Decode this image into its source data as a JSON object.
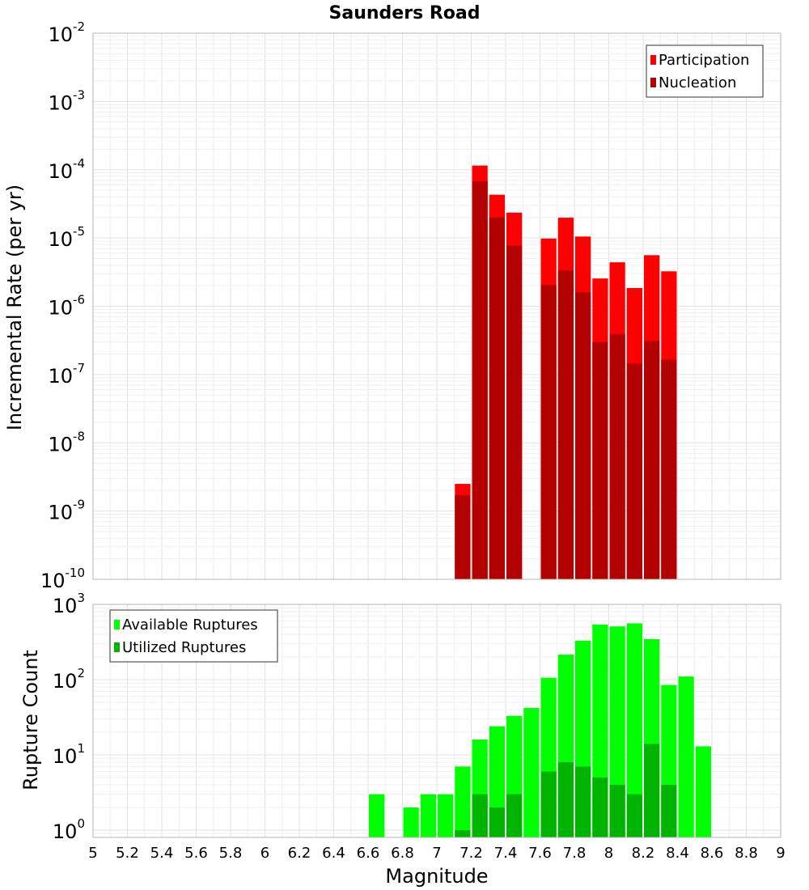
{
  "chart_data": [
    {
      "type": "bar",
      "title": "Saunders Road",
      "xlabel": "",
      "ylabel": "Incremental Rate (per yr)",
      "yscale": "log",
      "ylim": [
        1e-10,
        0.01
      ],
      "xlim": [
        5,
        9
      ],
      "y_ticks": [
        {
          "base": "10",
          "exp": "-10"
        },
        {
          "base": "10",
          "exp": "-9"
        },
        {
          "base": "10",
          "exp": "-8"
        },
        {
          "base": "10",
          "exp": "-7"
        },
        {
          "base": "10",
          "exp": "-6"
        },
        {
          "base": "10",
          "exp": "-5"
        },
        {
          "base": "10",
          "exp": "-4"
        },
        {
          "base": "10",
          "exp": "-3"
        },
        {
          "base": "10",
          "exp": "-2"
        }
      ],
      "legend_position": "top-right",
      "bar_width": 0.1,
      "series": [
        {
          "name": "Participation",
          "color": "#ff0000",
          "points": [
            {
              "x": 7.1,
              "y": 2.5e-09
            },
            {
              "x": 7.2,
              "y": 0.000115
            },
            {
              "x": 7.3,
              "y": 4.3e-05
            },
            {
              "x": 7.4,
              "y": 2.35e-05
            },
            {
              "x": 7.6,
              "y": 9.8e-06
            },
            {
              "x": 7.7,
              "y": 1.98e-05
            },
            {
              "x": 7.8,
              "y": 1.05e-05
            },
            {
              "x": 7.9,
              "y": 2.55e-06
            },
            {
              "x": 8.0,
              "y": 4.4e-06
            },
            {
              "x": 8.1,
              "y": 1.85e-06
            },
            {
              "x": 8.2,
              "y": 5.6e-06
            },
            {
              "x": 8.3,
              "y": 3.25e-06
            }
          ]
        },
        {
          "name": "Nucleation",
          "color": "#b30000",
          "points": [
            {
              "x": 7.1,
              "y": 1.7e-09
            },
            {
              "x": 7.2,
              "y": 6.8e-05
            },
            {
              "x": 7.3,
              "y": 2e-05
            },
            {
              "x": 7.4,
              "y": 7.7e-06
            },
            {
              "x": 7.6,
              "y": 2.05e-06
            },
            {
              "x": 7.7,
              "y": 3.35e-06
            },
            {
              "x": 7.8,
              "y": 1.6e-06
            },
            {
              "x": 7.9,
              "y": 3e-07
            },
            {
              "x": 8.0,
              "y": 3.9e-07
            },
            {
              "x": 8.1,
              "y": 1.45e-07
            },
            {
              "x": 8.2,
              "y": 3.1e-07
            },
            {
              "x": 8.3,
              "y": 1.65e-07
            }
          ]
        }
      ]
    },
    {
      "type": "bar",
      "title": "",
      "xlabel": "Magnitude",
      "ylabel": "Rupture Count",
      "yscale": "log",
      "ylim": [
        0.8,
        1000
      ],
      "xlim": [
        5,
        9
      ],
      "x_ticks": [
        "5",
        "5.2",
        "5.4",
        "5.6",
        "5.8",
        "6",
        "6.2",
        "6.4",
        "6.6",
        "6.8",
        "7",
        "7.2",
        "7.4",
        "7.6",
        "7.8",
        "8",
        "8.2",
        "8.4",
        "8.6",
        "8.8",
        "9"
      ],
      "y_ticks": [
        {
          "base": "10",
          "exp": "0"
        },
        {
          "base": "10",
          "exp": "1"
        },
        {
          "base": "10",
          "exp": "2"
        },
        {
          "base": "10",
          "exp": "3"
        }
      ],
      "legend_position": "top-left",
      "bar_width": 0.1,
      "series": [
        {
          "name": "Available Ruptures",
          "color": "#00ff00",
          "points": [
            {
              "x": 6.6,
              "y": 3
            },
            {
              "x": 6.8,
              "y": 2
            },
            {
              "x": 6.9,
              "y": 3
            },
            {
              "x": 7.0,
              "y": 3
            },
            {
              "x": 7.1,
              "y": 7
            },
            {
              "x": 7.2,
              "y": 16
            },
            {
              "x": 7.3,
              "y": 24
            },
            {
              "x": 7.4,
              "y": 33
            },
            {
              "x": 7.5,
              "y": 42
            },
            {
              "x": 7.6,
              "y": 106
            },
            {
              "x": 7.7,
              "y": 215
            },
            {
              "x": 7.8,
              "y": 330
            },
            {
              "x": 7.9,
              "y": 540
            },
            {
              "x": 8.0,
              "y": 510
            },
            {
              "x": 8.1,
              "y": 560
            },
            {
              "x": 8.2,
              "y": 345
            },
            {
              "x": 8.3,
              "y": 85
            },
            {
              "x": 8.4,
              "y": 110
            },
            {
              "x": 8.5,
              "y": 13
            }
          ]
        },
        {
          "name": "Utilized Ruptures",
          "color": "#00b300",
          "points": [
            {
              "x": 7.1,
              "y": 1
            },
            {
              "x": 7.2,
              "y": 3
            },
            {
              "x": 7.3,
              "y": 2
            },
            {
              "x": 7.4,
              "y": 3
            },
            {
              "x": 7.6,
              "y": 6
            },
            {
              "x": 7.7,
              "y": 8
            },
            {
              "x": 7.8,
              "y": 7
            },
            {
              "x": 7.9,
              "y": 5
            },
            {
              "x": 8.0,
              "y": 4
            },
            {
              "x": 8.1,
              "y": 3
            },
            {
              "x": 8.2,
              "y": 14
            },
            {
              "x": 8.3,
              "y": 4
            }
          ]
        }
      ]
    }
  ]
}
